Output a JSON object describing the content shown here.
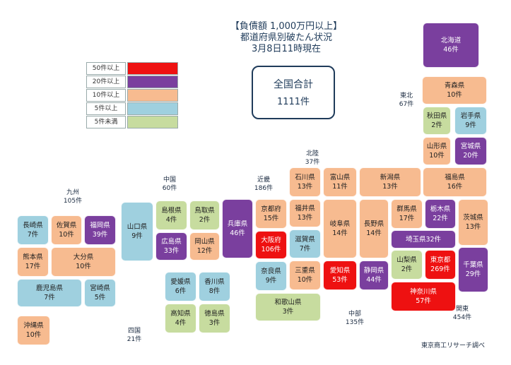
{
  "title": {
    "line1": "【負債額 1,000万円以上】",
    "line2": "都道府県別破たん状況",
    "line3": "3月8日11時現在"
  },
  "legend": [
    {
      "label": "50件以上",
      "color": "#ee1111"
    },
    {
      "label": "20件以上",
      "color": "#7a3f9e"
    },
    {
      "label": "10件以上",
      "color": "#f7bb90"
    },
    {
      "label": "5件以上",
      "color": "#9fd0df"
    },
    {
      "label": "5件未満",
      "color": "#c7dc9f"
    }
  ],
  "total": {
    "label": "全国合計",
    "value": "1111件"
  },
  "regions": {
    "tohoku": {
      "name": "東北",
      "count": "67件"
    },
    "hokuriku": {
      "name": "北陸",
      "count": "37件"
    },
    "chugoku": {
      "name": "中国",
      "count": "60件"
    },
    "kinki": {
      "name": "近畿",
      "count": "186件"
    },
    "kyushu": {
      "name": "九州",
      "count": "105件"
    },
    "shikoku": {
      "name": "四国",
      "count": "21件"
    },
    "chubu": {
      "name": "中部",
      "count": "135件"
    },
    "kanto": {
      "name": "関東",
      "count": "454件"
    }
  },
  "prefectures": {
    "hokkaido": {
      "name": "北海道",
      "count": "46件",
      "n": 46
    },
    "aomori": {
      "name": "青森県",
      "count": "10件",
      "n": 10
    },
    "akita": {
      "name": "秋田県",
      "count": "2件",
      "n": 2
    },
    "iwate": {
      "name": "岩手県",
      "count": "9件",
      "n": 9
    },
    "yamagata": {
      "name": "山形県",
      "count": "10件",
      "n": 10
    },
    "miyagi": {
      "name": "宮城県",
      "count": "20件",
      "n": 20
    },
    "fukushima": {
      "name": "福島県",
      "count": "16件",
      "n": 16
    },
    "niigata": {
      "name": "新潟県",
      "count": "13件",
      "n": 13
    },
    "ishikawa": {
      "name": "石川県",
      "count": "13件",
      "n": 13
    },
    "toyama": {
      "name": "富山県",
      "count": "11件",
      "n": 11
    },
    "fukui": {
      "name": "福井県",
      "count": "13件",
      "n": 13
    },
    "gifu": {
      "name": "岐阜県",
      "count": "14件",
      "n": 14
    },
    "nagano": {
      "name": "長野県",
      "count": "14件",
      "n": 14
    },
    "gunma": {
      "name": "群馬県",
      "count": "17件",
      "n": 17
    },
    "tochigi": {
      "name": "栃木県",
      "count": "22件",
      "n": 22
    },
    "ibaraki": {
      "name": "茨城県",
      "count": "13件",
      "n": 13
    },
    "saitama": {
      "name": "埼玉県",
      "count": "32件",
      "n": 32
    },
    "yamanashi": {
      "name": "山梨県",
      "count": "2件",
      "n": 2
    },
    "tokyo": {
      "name": "東京都",
      "count": "269件",
      "n": 269
    },
    "chiba": {
      "name": "千葉県",
      "count": "29件",
      "n": 29
    },
    "kanagawa": {
      "name": "神奈川県",
      "count": "57件",
      "n": 57
    },
    "shizuoka": {
      "name": "静岡県",
      "count": "44件",
      "n": 44
    },
    "aichi": {
      "name": "愛知県",
      "count": "53件",
      "n": 53
    },
    "mie": {
      "name": "三重県",
      "count": "10件",
      "n": 10
    },
    "shiga": {
      "name": "滋賀県",
      "count": "7件",
      "n": 7
    },
    "kyoto": {
      "name": "京都府",
      "count": "15件",
      "n": 15
    },
    "osaka": {
      "name": "大阪府",
      "count": "106件",
      "n": 106
    },
    "nara": {
      "name": "奈良県",
      "count": "9件",
      "n": 9
    },
    "wakayama": {
      "name": "和歌山県",
      "count": "3件",
      "n": 3
    },
    "hyogo": {
      "name": "兵庫県",
      "count": "46件",
      "n": 46
    },
    "tottori": {
      "name": "鳥取県",
      "count": "2件",
      "n": 2
    },
    "shimane": {
      "name": "島根県",
      "count": "4件",
      "n": 4
    },
    "okayama": {
      "name": "岡山県",
      "count": "12件",
      "n": 12
    },
    "hiroshima": {
      "name": "広島県",
      "count": "33件",
      "n": 33
    },
    "yamaguchi": {
      "name": "山口県",
      "count": "9件",
      "n": 9
    },
    "ehime": {
      "name": "愛媛県",
      "count": "6件",
      "n": 6
    },
    "kagawa": {
      "name": "香川県",
      "count": "8件",
      "n": 8
    },
    "kochi": {
      "name": "高知県",
      "count": "4件",
      "n": 4
    },
    "tokushima": {
      "name": "徳島県",
      "count": "3件",
      "n": 3
    },
    "nagasaki": {
      "name": "長崎県",
      "count": "7件",
      "n": 7
    },
    "saga": {
      "name": "佐賀県",
      "count": "10件",
      "n": 10
    },
    "fukuoka": {
      "name": "福岡県",
      "count": "39件",
      "n": 39
    },
    "kumamoto": {
      "name": "熊本県",
      "count": "17件",
      "n": 17
    },
    "oita": {
      "name": "大分県",
      "count": "10件",
      "n": 10
    },
    "kagoshima": {
      "name": "鹿児島県",
      "count": "7件",
      "n": 7
    },
    "miyazaki": {
      "name": "宮崎県",
      "count": "5件",
      "n": 5
    },
    "okinawa": {
      "name": "沖縄県",
      "count": "10件",
      "n": 10
    }
  },
  "source": "東京商工リサーチ調べ"
}
